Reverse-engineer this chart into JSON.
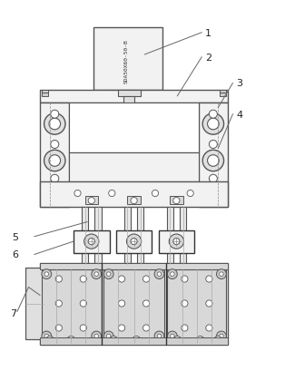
{
  "bg_color": "#ffffff",
  "line_color": "#555555",
  "dark_line": "#333333",
  "dashed_color": "#888888",
  "cylinder_text": "SDA50X60-50-B",
  "label_fontsize": 8,
  "fig_bg": "#ffffff",
  "gray_fill": "#e8e8e8",
  "light_fill": "#f2f2f2",
  "mid_fill": "#d8d8d8",
  "dark_fill": "#c0c0c0"
}
